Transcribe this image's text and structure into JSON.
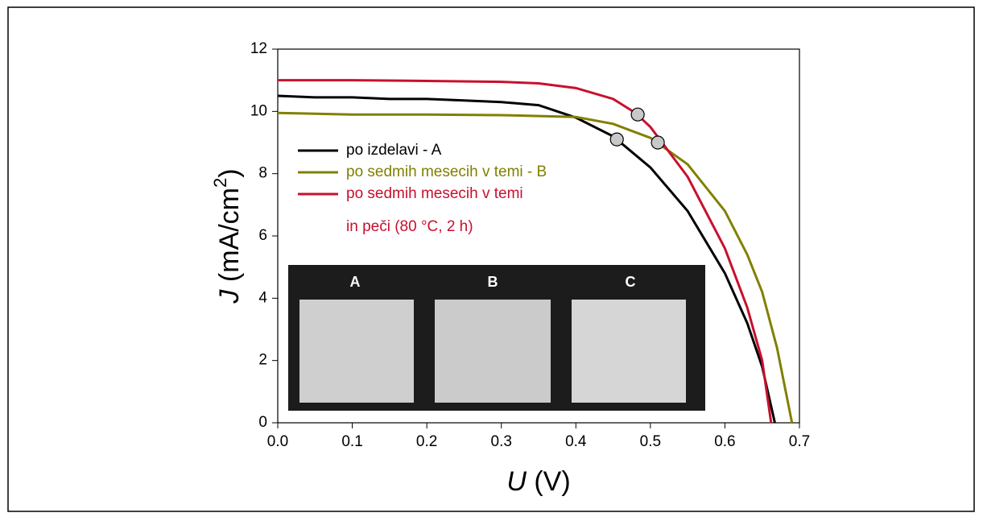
{
  "chart_data": {
    "type": "line",
    "ylabel": {
      "symbol": "J",
      "unit": "(mA/cm",
      "sup": "2",
      "close": ")"
    },
    "xlabel": {
      "symbol": "U",
      "unit": "(V)"
    },
    "xlim": [
      0,
      0.7
    ],
    "ylim": [
      0,
      12
    ],
    "xticks": [
      {
        "value": 0,
        "label": "0.0"
      },
      {
        "value": 0.1,
        "label": "0.1"
      },
      {
        "value": 0.2,
        "label": "0.2"
      },
      {
        "value": 0.3,
        "label": "0.3"
      },
      {
        "value": 0.4,
        "label": "0.4"
      },
      {
        "value": 0.5,
        "label": "0.5"
      },
      {
        "value": 0.6,
        "label": "0.6"
      },
      {
        "value": 0.7,
        "label": "0.7"
      }
    ],
    "yticks": [
      0,
      2,
      4,
      6,
      8,
      10,
      12
    ],
    "grid": false,
    "series": [
      {
        "name": [
          "po izdelavi - A"
        ],
        "color": "#000000",
        "x": [
          0,
          0.05,
          0.1,
          0.15,
          0.2,
          0.25,
          0.3,
          0.35,
          0.4,
          0.45,
          0.5,
          0.55,
          0.6,
          0.63,
          0.65,
          0.667
        ],
        "values": [
          10.5,
          10.45,
          10.45,
          10.4,
          10.4,
          10.35,
          10.3,
          10.2,
          9.8,
          9.2,
          8.2,
          6.8,
          4.8,
          3.2,
          1.8,
          0
        ]
      },
      {
        "name": [
          "po sedmih mesecih v temi - B"
        ],
        "color": "#808000",
        "x": [
          0,
          0.1,
          0.2,
          0.3,
          0.4,
          0.45,
          0.5,
          0.55,
          0.6,
          0.63,
          0.65,
          0.67,
          0.69
        ],
        "values": [
          9.95,
          9.9,
          9.9,
          9.88,
          9.82,
          9.6,
          9.15,
          8.3,
          6.8,
          5.4,
          4.2,
          2.4,
          0
        ]
      },
      {
        "name": [
          "po sedmih mesecih v temi",
          "in peči (80 °C, 2 h)"
        ],
        "color": "#c8102e",
        "x": [
          0,
          0.05,
          0.1,
          0.2,
          0.3,
          0.35,
          0.4,
          0.45,
          0.48,
          0.5,
          0.55,
          0.6,
          0.63,
          0.65,
          0.662
        ],
        "values": [
          11.0,
          11.0,
          11.0,
          10.98,
          10.95,
          10.9,
          10.75,
          10.4,
          9.95,
          9.5,
          7.9,
          5.6,
          3.7,
          2.0,
          0
        ]
      }
    ],
    "points": {
      "x": [
        0.455,
        0.483,
        0.51
      ],
      "values": [
        9.1,
        9.9,
        9.0
      ],
      "color": "#c8c8c8"
    },
    "inset_labels": [
      "A",
      "B",
      "C"
    ]
  }
}
